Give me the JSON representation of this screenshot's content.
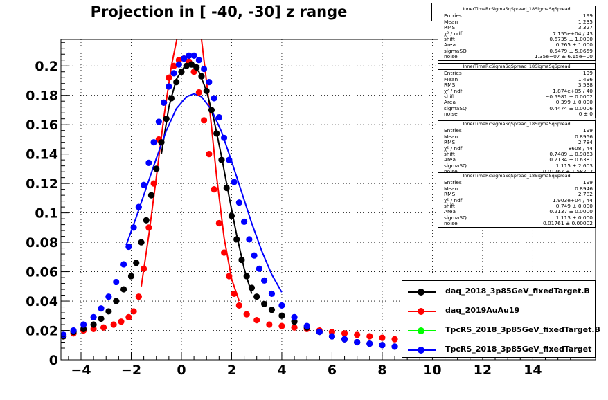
{
  "title": "Projection in [ -40, -30] z range",
  "chart_data": {
    "type": "scatter",
    "xlim": [
      -4.8,
      16.5
    ],
    "ylim": [
      0,
      0.218
    ],
    "x_ticks": [
      -4,
      -2,
      0,
      2,
      4,
      6,
      8,
      10,
      12,
      14
    ],
    "y_ticks": [
      0,
      0.02,
      0.04,
      0.06,
      0.08,
      0.1,
      0.12,
      0.14,
      0.16,
      0.18,
      0.2
    ],
    "x_tick_labels": [
      "−4",
      "−2",
      "0",
      "2",
      "4",
      "6",
      "8",
      "10",
      "12",
      "14"
    ],
    "y_tick_labels": [
      "0",
      "0.02",
      "0.04",
      "0.06",
      "0.08",
      "0.1",
      "0.12",
      "0.14",
      "0.16",
      "0.18",
      "0.2"
    ],
    "grid": true,
    "legend_position": "bottom-right",
    "series": [
      {
        "name": "daq_2018_3p85GeV_fixedTarget.B",
        "color": "#000000",
        "points": [
          [
            -4.7,
            0.016
          ],
          [
            -4.3,
            0.019
          ],
          [
            -3.9,
            0.021
          ],
          [
            -3.5,
            0.024
          ],
          [
            -3.2,
            0.028
          ],
          [
            -2.9,
            0.033
          ],
          [
            -2.6,
            0.04
          ],
          [
            -2.3,
            0.048
          ],
          [
            -2.0,
            0.057
          ],
          [
            -1.8,
            0.066
          ],
          [
            -1.6,
            0.08
          ],
          [
            -1.4,
            0.095
          ],
          [
            -1.2,
            0.112
          ],
          [
            -1.0,
            0.13
          ],
          [
            -0.8,
            0.148
          ],
          [
            -0.6,
            0.164
          ],
          [
            -0.4,
            0.178
          ],
          [
            -0.2,
            0.189
          ],
          [
            0.0,
            0.196
          ],
          [
            0.2,
            0.2
          ],
          [
            0.4,
            0.201
          ],
          [
            0.6,
            0.199
          ],
          [
            0.8,
            0.193
          ],
          [
            1.0,
            0.183
          ],
          [
            1.2,
            0.17
          ],
          [
            1.4,
            0.154
          ],
          [
            1.6,
            0.136
          ],
          [
            1.8,
            0.117
          ],
          [
            2.0,
            0.098
          ],
          [
            2.2,
            0.082
          ],
          [
            2.4,
            0.068
          ],
          [
            2.6,
            0.057
          ],
          [
            2.8,
            0.049
          ],
          [
            3.0,
            0.043
          ],
          [
            3.3,
            0.038
          ],
          [
            3.6,
            0.034
          ],
          [
            4.0,
            0.03
          ],
          [
            4.5,
            0.026
          ],
          [
            5.0,
            0.022
          ],
          [
            5.5,
            0.019
          ],
          [
            6.0,
            0.016
          ],
          [
            6.5,
            0.014
          ],
          [
            7.0,
            0.012
          ],
          [
            7.5,
            0.011
          ],
          [
            8.0,
            0.01
          ],
          [
            8.5,
            0.009
          ],
          [
            9.0,
            0.008
          ]
        ],
        "fit": [
          [
            -0.8,
            0.14
          ],
          [
            -0.5,
            0.172
          ],
          [
            -0.2,
            0.191
          ],
          [
            0.1,
            0.199
          ],
          [
            0.4,
            0.201
          ],
          [
            0.7,
            0.196
          ],
          [
            1.0,
            0.183
          ],
          [
            1.3,
            0.163
          ],
          [
            1.6,
            0.138
          ],
          [
            1.9,
            0.111
          ],
          [
            2.2,
            0.085
          ],
          [
            2.5,
            0.062
          ],
          [
            2.8,
            0.045
          ]
        ]
      },
      {
        "name": "daq_2019AuAu19",
        "color": "#ff0000",
        "points": [
          [
            -4.7,
            0.016
          ],
          [
            -4.3,
            0.018
          ],
          [
            -3.9,
            0.02
          ],
          [
            -3.5,
            0.021
          ],
          [
            -3.1,
            0.022
          ],
          [
            -2.7,
            0.024
          ],
          [
            -2.4,
            0.026
          ],
          [
            -2.1,
            0.029
          ],
          [
            -1.9,
            0.033
          ],
          [
            -1.7,
            0.043
          ],
          [
            -1.5,
            0.062
          ],
          [
            -1.3,
            0.09
          ],
          [
            -1.1,
            0.12
          ],
          [
            -0.9,
            0.15
          ],
          [
            -0.7,
            0.175
          ],
          [
            -0.5,
            0.192
          ],
          [
            -0.3,
            0.2
          ],
          [
            -0.1,
            0.204
          ],
          [
            0.1,
            0.205
          ],
          [
            0.3,
            0.203
          ],
          [
            0.5,
            0.196
          ],
          [
            0.7,
            0.182
          ],
          [
            0.9,
            0.163
          ],
          [
            1.1,
            0.14
          ],
          [
            1.3,
            0.116
          ],
          [
            1.5,
            0.093
          ],
          [
            1.7,
            0.073
          ],
          [
            1.9,
            0.057
          ],
          [
            2.1,
            0.045
          ],
          [
            2.3,
            0.037
          ],
          [
            2.6,
            0.031
          ],
          [
            3.0,
            0.027
          ],
          [
            3.5,
            0.024
          ],
          [
            4.0,
            0.023
          ],
          [
            4.5,
            0.022
          ],
          [
            5.0,
            0.021
          ],
          [
            5.5,
            0.02
          ],
          [
            6.0,
            0.019
          ],
          [
            6.5,
            0.018
          ],
          [
            7.0,
            0.017
          ],
          [
            7.5,
            0.016
          ],
          [
            8.0,
            0.015
          ],
          [
            8.5,
            0.014
          ],
          [
            9.0,
            0.013
          ]
        ],
        "fit": [
          [
            -1.6,
            0.05
          ],
          [
            -1.3,
            0.085
          ],
          [
            -1.0,
            0.124
          ],
          [
            -0.7,
            0.165
          ],
          [
            -0.4,
            0.2
          ],
          [
            -0.1,
            0.225
          ],
          [
            0.2,
            0.24
          ],
          [
            0.5,
            0.236
          ],
          [
            0.8,
            0.218
          ],
          [
            1.1,
            0.175
          ],
          [
            1.4,
            0.125
          ],
          [
            1.7,
            0.083
          ],
          [
            2.0,
            0.055
          ],
          [
            2.3,
            0.04
          ]
        ]
      },
      {
        "name": "TpcRS_2018_3p85GeV_fixedTarget.B",
        "color": "#00ff00",
        "points": [],
        "fit": []
      },
      {
        "name": "TpcRS_2018_3p85GeV_fixedTarget",
        "color": "#0000ff",
        "points": [
          [
            -4.7,
            0.017
          ],
          [
            -4.3,
            0.02
          ],
          [
            -3.9,
            0.024
          ],
          [
            -3.5,
            0.029
          ],
          [
            -3.2,
            0.035
          ],
          [
            -2.9,
            0.043
          ],
          [
            -2.6,
            0.053
          ],
          [
            -2.3,
            0.065
          ],
          [
            -2.1,
            0.077
          ],
          [
            -1.9,
            0.09
          ],
          [
            -1.7,
            0.104
          ],
          [
            -1.5,
            0.119
          ],
          [
            -1.3,
            0.134
          ],
          [
            -1.1,
            0.148
          ],
          [
            -0.9,
            0.162
          ],
          [
            -0.7,
            0.175
          ],
          [
            -0.5,
            0.186
          ],
          [
            -0.3,
            0.195
          ],
          [
            -0.1,
            0.201
          ],
          [
            0.1,
            0.205
          ],
          [
            0.3,
            0.207
          ],
          [
            0.5,
            0.207
          ],
          [
            0.7,
            0.204
          ],
          [
            0.9,
            0.198
          ],
          [
            1.1,
            0.189
          ],
          [
            1.3,
            0.178
          ],
          [
            1.5,
            0.165
          ],
          [
            1.7,
            0.151
          ],
          [
            1.9,
            0.136
          ],
          [
            2.1,
            0.121
          ],
          [
            2.3,
            0.107
          ],
          [
            2.5,
            0.094
          ],
          [
            2.7,
            0.082
          ],
          [
            2.9,
            0.071
          ],
          [
            3.1,
            0.062
          ],
          [
            3.3,
            0.054
          ],
          [
            3.6,
            0.045
          ],
          [
            4.0,
            0.037
          ],
          [
            4.5,
            0.029
          ],
          [
            5.0,
            0.023
          ],
          [
            5.5,
            0.019
          ],
          [
            6.0,
            0.016
          ],
          [
            6.5,
            0.014
          ],
          [
            7.0,
            0.012
          ],
          [
            7.5,
            0.011
          ],
          [
            8.0,
            0.01
          ],
          [
            8.5,
            0.009
          ],
          [
            9.0,
            0.008
          ]
        ],
        "fit": [
          [
            -2.2,
            0.078
          ],
          [
            -1.8,
            0.097
          ],
          [
            -1.4,
            0.117
          ],
          [
            -1.0,
            0.137
          ],
          [
            -0.6,
            0.156
          ],
          [
            -0.2,
            0.171
          ],
          [
            0.2,
            0.179
          ],
          [
            0.5,
            0.181
          ],
          [
            0.8,
            0.179
          ],
          [
            1.2,
            0.17
          ],
          [
            1.6,
            0.155
          ],
          [
            2.0,
            0.135
          ],
          [
            2.4,
            0.114
          ],
          [
            2.8,
            0.093
          ],
          [
            3.2,
            0.074
          ],
          [
            3.6,
            0.058
          ],
          [
            4.0,
            0.046
          ]
        ]
      }
    ]
  },
  "stats_boxes": [
    {
      "header": "InnerTimeRcSigmaSqSpread_18SigmaSqSpread",
      "rows": [
        {
          "label": "Entries",
          "value": "199"
        },
        {
          "label": "Mean",
          "value": "1.235"
        },
        {
          "label": "RMS",
          "value": "3.327"
        },
        {
          "label": "χ² / ndf",
          "value": "7.155e+04 / 43"
        },
        {
          "label": "shift",
          "value": "−0.6735 ± 1.0000"
        },
        {
          "label": "Area",
          "value": "0.265 ± 1.000"
        },
        {
          "label": "sigmaSQ",
          "value": "0.5479 ± 5.0659"
        },
        {
          "label": "noise",
          "value": "1.35e−07 ± 6.15e+00"
        }
      ]
    },
    {
      "header": "InnerTimeRcSigmaSqSpread_18SigmaSqSpread",
      "rows": [
        {
          "label": "Entries",
          "value": "199"
        },
        {
          "label": "Mean",
          "value": "1.496"
        },
        {
          "label": "RMS",
          "value": "3.538"
        },
        {
          "label": "χ² / ndf",
          "value": "1.874e+05 / 40"
        },
        {
          "label": "shift",
          "value": "−0.5981 ± 0.0002"
        },
        {
          "label": "Area",
          "value": "0.399 ± 0.000"
        },
        {
          "label": "sigmaSQ",
          "value": "0.4474 ± 0.0006"
        },
        {
          "label": "noise",
          "value": "0 ± 0"
        }
      ]
    },
    {
      "header": "InnerTimeRcSigmaSqSpread_18SigmaSqSpread",
      "rows": [
        {
          "label": "Entries",
          "value": "199"
        },
        {
          "label": "Mean",
          "value": "0.8956"
        },
        {
          "label": "RMS",
          "value": "2.784"
        },
        {
          "label": "χ² / ndf",
          "value": "8608 / 44"
        },
        {
          "label": "shift",
          "value": "−0.7489 ± 0.9863"
        },
        {
          "label": "Area",
          "value": "0.2134 ± 0.6381"
        },
        {
          "label": "sigmaSQ",
          "value": "1.115 ± 2.603"
        },
        {
          "label": "noise",
          "value": "0.01767 ± 1.58202"
        }
      ]
    },
    {
      "header": "InnerTimeRcSigmaSqSpread_18SigmaSqSpread",
      "rows": [
        {
          "label": "Entries",
          "value": "199"
        },
        {
          "label": "Mean",
          "value": "0.8946"
        },
        {
          "label": "RMS",
          "value": "2.782"
        },
        {
          "label": "χ² / ndf",
          "value": "1.903e+04 / 44"
        },
        {
          "label": "shift",
          "value": "−0.749 ± 0.000"
        },
        {
          "label": "Area",
          "value": "0.2137 ± 0.0000"
        },
        {
          "label": "sigmaSQ",
          "value": "1.113 ± 0.000"
        },
        {
          "label": "noise",
          "value": "0.01761 ± 0.00002"
        }
      ]
    }
  ]
}
